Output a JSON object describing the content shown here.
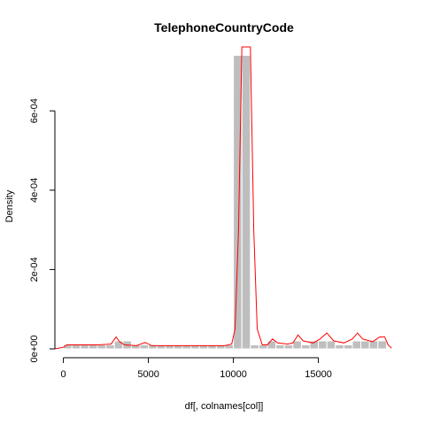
{
  "chart_data": {
    "type": "bar",
    "title": "TelephoneCountryCode",
    "xlabel": "df[, colnames[col]]",
    "ylabel": "Density",
    "xlim": [
      -500,
      19500
    ],
    "ylim": [
      0,
      0.00075
    ],
    "x_ticks": [
      0,
      5000,
      10000,
      15000
    ],
    "x_tick_labels": [
      "0",
      "5000",
      "10000",
      "15000"
    ],
    "y_ticks": [
      0,
      0.0002,
      0.0004,
      0.0006
    ],
    "y_tick_labels": [
      "0e+00",
      "2e-04",
      "4e-04",
      "6e-04"
    ],
    "bar_color": "#bebebe",
    "density_color": "#ff0000",
    "bins": [
      {
        "x0": 0,
        "x1": 500,
        "density": 1e-05
      },
      {
        "x0": 500,
        "x1": 1000,
        "density": 1e-05
      },
      {
        "x0": 1000,
        "x1": 1500,
        "density": 1e-05
      },
      {
        "x0": 1500,
        "x1": 2000,
        "density": 1e-05
      },
      {
        "x0": 2000,
        "x1": 2500,
        "density": 1e-05
      },
      {
        "x0": 2500,
        "x1": 3000,
        "density": 1e-05
      },
      {
        "x0": 3000,
        "x1": 3500,
        "density": 2e-05
      },
      {
        "x0": 3500,
        "x1": 4000,
        "density": 2e-05
      },
      {
        "x0": 4000,
        "x1": 4500,
        "density": 1e-05
      },
      {
        "x0": 4500,
        "x1": 5000,
        "density": 1e-05
      },
      {
        "x0": 5000,
        "x1": 5500,
        "density": 1e-05
      },
      {
        "x0": 5500,
        "x1": 6000,
        "density": 1e-05
      },
      {
        "x0": 6000,
        "x1": 6500,
        "density": 1e-05
      },
      {
        "x0": 6500,
        "x1": 7000,
        "density": 1e-05
      },
      {
        "x0": 7000,
        "x1": 7500,
        "density": 1e-05
      },
      {
        "x0": 7500,
        "x1": 8000,
        "density": 1e-05
      },
      {
        "x0": 8000,
        "x1": 8500,
        "density": 1e-05
      },
      {
        "x0": 8500,
        "x1": 9000,
        "density": 1e-05
      },
      {
        "x0": 9000,
        "x1": 9500,
        "density": 1e-05
      },
      {
        "x0": 9500,
        "x1": 10000,
        "density": 1e-05
      },
      {
        "x0": 10000,
        "x1": 10500,
        "density": 0.00074
      },
      {
        "x0": 10500,
        "x1": 11000,
        "density": 0.00074
      },
      {
        "x0": 11000,
        "x1": 11500,
        "density": 1e-05
      },
      {
        "x0": 11500,
        "x1": 12000,
        "density": 1e-05
      },
      {
        "x0": 12000,
        "x1": 12500,
        "density": 2e-05
      },
      {
        "x0": 12500,
        "x1": 13000,
        "density": 1e-05
      },
      {
        "x0": 13000,
        "x1": 13500,
        "density": 1e-05
      },
      {
        "x0": 13500,
        "x1": 14000,
        "density": 2e-05
      },
      {
        "x0": 14000,
        "x1": 14500,
        "density": 1e-05
      },
      {
        "x0": 14500,
        "x1": 15000,
        "density": 2e-05
      },
      {
        "x0": 15000,
        "x1": 15500,
        "density": 2e-05
      },
      {
        "x0": 15500,
        "x1": 16000,
        "density": 2e-05
      },
      {
        "x0": 16000,
        "x1": 16500,
        "density": 1e-05
      },
      {
        "x0": 16500,
        "x1": 17000,
        "density": 1e-05
      },
      {
        "x0": 17000,
        "x1": 17500,
        "density": 2e-05
      },
      {
        "x0": 17500,
        "x1": 18000,
        "density": 2e-05
      },
      {
        "x0": 18000,
        "x1": 18500,
        "density": 2e-05
      },
      {
        "x0": 18500,
        "x1": 19000,
        "density": 2e-05
      }
    ],
    "density_curve": [
      [
        -500,
        0
      ],
      [
        0,
        4e-06
      ],
      [
        200,
        1e-05
      ],
      [
        1000,
        1e-05
      ],
      [
        2000,
        1e-05
      ],
      [
        2800,
        1.2e-05
      ],
      [
        3100,
        3e-05
      ],
      [
        3300,
        1.8e-05
      ],
      [
        3600,
        1e-05
      ],
      [
        4300,
        8e-06
      ],
      [
        4800,
        1.6e-05
      ],
      [
        5200,
        8e-06
      ],
      [
        6000,
        8e-06
      ],
      [
        8000,
        8e-06
      ],
      [
        9500,
        8e-06
      ],
      [
        9900,
        1.2e-05
      ],
      [
        10100,
        5e-05
      ],
      [
        10300,
        0.0003
      ],
      [
        10500,
        0.0008
      ],
      [
        11000,
        0.0008
      ],
      [
        11200,
        0.0003
      ],
      [
        11400,
        5e-05
      ],
      [
        11700,
        1e-05
      ],
      [
        12000,
        1e-05
      ],
      [
        12300,
        2.5e-05
      ],
      [
        12600,
        1.5e-05
      ],
      [
        13200,
        1.2e-05
      ],
      [
        13500,
        1.5e-05
      ],
      [
        13800,
        3.5e-05
      ],
      [
        14100,
        2e-05
      ],
      [
        14700,
        1.5e-05
      ],
      [
        15100,
        2.5e-05
      ],
      [
        15500,
        4e-05
      ],
      [
        15900,
        2e-05
      ],
      [
        16500,
        1.5e-05
      ],
      [
        17000,
        2.5e-05
      ],
      [
        17300,
        4e-05
      ],
      [
        17600,
        2.5e-05
      ],
      [
        18200,
        1.8e-05
      ],
      [
        18600,
        3e-05
      ],
      [
        18900,
        3e-05
      ],
      [
        19100,
        1e-05
      ],
      [
        19300,
        2e-06
      ]
    ]
  }
}
